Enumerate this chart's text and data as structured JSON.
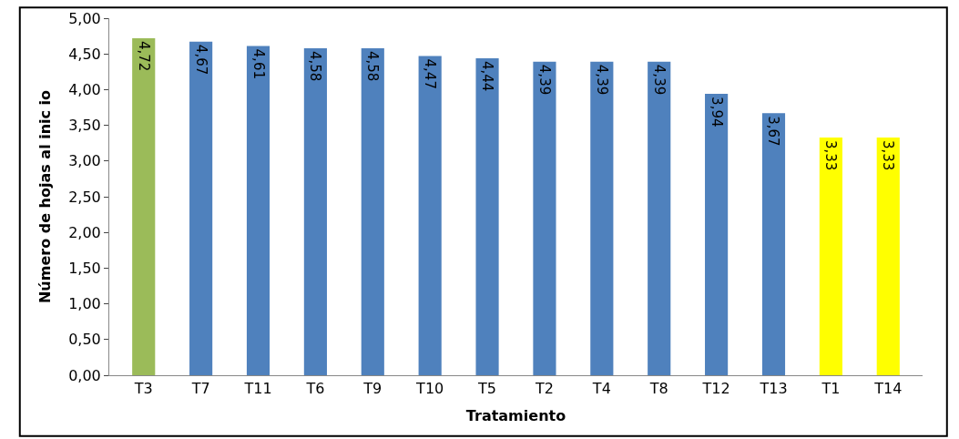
{
  "chart_data": {
    "type": "bar",
    "xlabel": "Tratamiento",
    "ylabel": "Número de hojas al inic io",
    "categories": [
      "T3",
      "T7",
      "T11",
      "T6",
      "T9",
      "T10",
      "T5",
      "T2",
      "T4",
      "T8",
      "T12",
      "T13",
      "T1",
      "T14"
    ],
    "values": [
      4.72,
      4.67,
      4.61,
      4.58,
      4.58,
      4.47,
      4.44,
      4.39,
      4.39,
      4.39,
      3.94,
      3.67,
      3.33,
      3.33
    ],
    "colors": [
      "#9bbb59",
      "#4f81bd",
      "#4f81bd",
      "#4f81bd",
      "#4f81bd",
      "#4f81bd",
      "#4f81bd",
      "#4f81bd",
      "#4f81bd",
      "#4f81bd",
      "#4f81bd",
      "#4f81bd",
      "#ffff00",
      "#ffff00"
    ],
    "ylim": [
      0,
      5
    ],
    "yticks": [
      {
        "value": 0,
        "label": "0,00"
      },
      {
        "value": 0.5,
        "label": "0,50"
      },
      {
        "value": 1,
        "label": "1,00"
      },
      {
        "value": 1.5,
        "label": "1,50"
      },
      {
        "value": 2,
        "label": "2,00"
      },
      {
        "value": 2.5,
        "label": "2,50"
      },
      {
        "value": 3,
        "label": "3,00"
      },
      {
        "value": 3.5,
        "label": "3,50"
      },
      {
        "value": 4,
        "label": "4,00"
      },
      {
        "value": 4.5,
        "label": "4,50"
      },
      {
        "value": 5,
        "label": "5,00"
      }
    ],
    "value_labels": [
      "4,72",
      "4,67",
      "4,61",
      "4,58",
      "4,58",
      "4,47",
      "4,44",
      "4,39",
      "4,39",
      "4,39",
      "3,94",
      "3,67",
      "3,33",
      "3,33"
    ]
  }
}
